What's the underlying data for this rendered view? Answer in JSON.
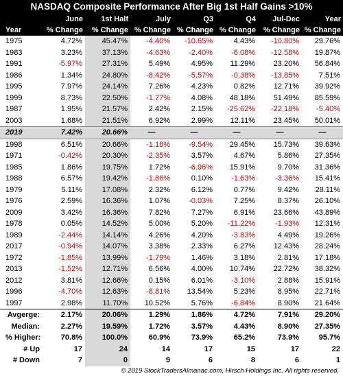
{
  "title": "NASDAQ Composite Performance After Big 1st Half Gains >10%",
  "table": {
    "header_top": [
      "June",
      "1st Half",
      "July",
      "Q3",
      "Q4",
      "Jul-Dec",
      "Year"
    ],
    "header_bottom": [
      "Year",
      "% Change",
      "% Change",
      "% Change",
      "% Change",
      "% Change",
      "% Change",
      "% Change"
    ],
    "rows": [
      [
        "1975",
        "4.72%",
        "45.47%",
        "-4.40%",
        "-10.65%",
        "4.43%",
        "-10.80%",
        "29.76%"
      ],
      [
        "1983",
        "3.23%",
        "37.13%",
        "-4.63%",
        "-2.40%",
        "-6.08%",
        "-12.58%",
        "19.87%"
      ],
      [
        "1991",
        "-5.97%",
        "27.31%",
        "5.49%",
        "4.95%",
        "11.29%",
        "23.20%",
        "56.84%"
      ],
      [
        "1986",
        "1.34%",
        "24.80%",
        "-8.42%",
        "-5.57%",
        "-0.38%",
        "-13.85%",
        "7.51%"
      ],
      [
        "1995",
        "7.97%",
        "24.14%",
        "7.26%",
        "4.23%",
        "0.82%",
        "12.71%",
        "39.92%"
      ],
      [
        "1999",
        "8.73%",
        "22.50%",
        "-1.77%",
        "4.08%",
        "48.18%",
        "51.49%",
        "85.59%"
      ],
      [
        "1987",
        "1.95%",
        "21.57%",
        "2.42%",
        "2.15%",
        "-25.62%",
        "-22.18%",
        "-5.40%"
      ],
      [
        "2003",
        "1.68%",
        "21.51%",
        "6.92%",
        "2.99%",
        "12.11%",
        "23.45%",
        "50.01%"
      ],
      [
        "2019",
        "7.42%",
        "20.66%",
        "—",
        "—",
        "—",
        "—",
        "—"
      ],
      [
        "1998",
        "6.51%",
        "20.66%",
        "-1.18%",
        "-9.54%",
        "29.45%",
        "15.73%",
        "39.63%"
      ],
      [
        "1971",
        "-0.42%",
        "20.30%",
        "-2.35%",
        "3.57%",
        "4.67%",
        "5.86%",
        "27.35%"
      ],
      [
        "1985",
        "1.86%",
        "19.75%",
        "1.72%",
        "-6.96%",
        "15.91%",
        "9.70%",
        "31.36%"
      ],
      [
        "1988",
        "6.57%",
        "19.42%",
        "-1.86%",
        "0.10%",
        "-1.63%",
        "-3.36%",
        "15.41%"
      ],
      [
        "1979",
        "5.11%",
        "17.08%",
        "2.32%",
        "6.12%",
        "0.77%",
        "9.42%",
        "28.11%"
      ],
      [
        "1976",
        "2.59%",
        "16.36%",
        "1.07%",
        "-0.03%",
        "7.25%",
        "8.37%",
        "26.10%"
      ],
      [
        "2009",
        "3.42%",
        "16.36%",
        "7.82%",
        "7.27%",
        "6.91%",
        "23.66%",
        "43.89%"
      ],
      [
        "1978",
        "0.05%",
        "14.52%",
        "5.00%",
        "5.20%",
        "-11.22%",
        "-1.93%",
        "12.31%"
      ],
      [
        "1989",
        "-2.44%",
        "14.14%",
        "4.26%",
        "4.20%",
        "-3.83%",
        "4.49%",
        "19.26%"
      ],
      [
        "2017",
        "-0.94%",
        "14.07%",
        "3.38%",
        "2.33%",
        "6.27%",
        "12.43%",
        "28.24%"
      ],
      [
        "1972",
        "-1.85%",
        "13.99%",
        "-1.79%",
        "1.46%",
        "3.18%",
        "2.81%",
        "17.18%"
      ],
      [
        "2013",
        "-1.52%",
        "12.71%",
        "6.56%",
        "4.00%",
        "10.74%",
        "22.72%",
        "38.32%"
      ],
      [
        "2012",
        "3.81%",
        "12.66%",
        "0.15%",
        "6.01%",
        "-3.10%",
        "2.88%",
        "15.91%"
      ],
      [
        "1996",
        "-4.70%",
        "12.63%",
        "-8.81%",
        "13.54%",
        "5.23%",
        "8.95%",
        "22.71%"
      ],
      [
        "1997",
        "2.98%",
        "11.70%",
        "10.52%",
        "5.76%",
        "-6.84%",
        "8.90%",
        "21.64%"
      ]
    ],
    "summary": [
      [
        "Avgerge:",
        "2.17%",
        "20.06%",
        "1.29%",
        "1.86%",
        "4.72%",
        "7.91%",
        "29.20%"
      ],
      [
        "Median:",
        "2.27%",
        "19.59%",
        "1.72%",
        "3.57%",
        "4.43%",
        "8.90%",
        "27.35%"
      ],
      [
        "% Higher:",
        "70.8%",
        "100.0%",
        "60.9%",
        "73.9%",
        "65.2%",
        "73.9%",
        "95.7%"
      ],
      [
        "# Up",
        "17",
        "24",
        "14",
        "17",
        "15",
        "17",
        "22"
      ],
      [
        "# Down",
        "7",
        "0",
        "9",
        "6",
        "8",
        "6",
        "1"
      ]
    ]
  },
  "footer": "© 2019 StockTradersAlmanac.com, Hirsch Holdings Inc. All rights reserved."
}
